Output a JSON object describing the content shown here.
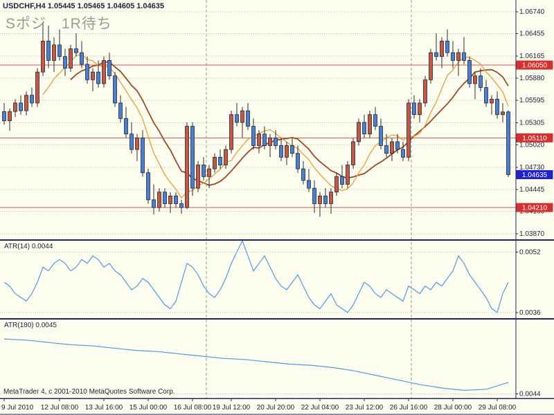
{
  "window": {
    "title_line": "USDCHF,H4 1.05445 1.05465 1.04605 1.04635",
    "symbol": "USDCHF",
    "timeframe": "H4",
    "ohlc_display": {
      "open": "1.05445",
      "high": "1.05465",
      "low": "1.04605",
      "close": "1.04635"
    },
    "overlay_note": "Sポジ　1R待ち",
    "copyright": "MetaTrader 4, c 2001-2010 MetaQuotes Software Corp."
  },
  "colors": {
    "background": "#FCFCEF",
    "grid": "#BDBDB2",
    "axis_text": "#23233F",
    "panel_border": "#23235F",
    "bull": "#C0584C",
    "bear": "#4C7FCC",
    "wick": "#2A2A35",
    "body_outline": "#1C1C28",
    "ma_fast": "#E2A13C",
    "ma_slow": "#9A4A28",
    "level_line": "#E05555",
    "level_badge": "#D43030",
    "current_badge": "#2222CC",
    "badge_text": "#FFFFFF",
    "atr_line": "#5599DD",
    "separator_dash": "#9A9A90"
  },
  "chart_data": [
    {
      "type": "candlestick",
      "title": "USDCHF H4",
      "ylim": [
        1.038,
        1.0689
      ],
      "y_ticks": [
        "1.06740",
        "1.06455",
        "1.06165",
        "1.05880",
        "1.05595",
        "1.05305",
        "1.05020",
        "1.04730",
        "1.04445",
        "1.04160",
        "1.03870"
      ],
      "open": [
        1.0545,
        1.0533,
        1.0545,
        1.0556,
        1.0546,
        1.0566,
        1.0556,
        1.0596,
        1.0636,
        1.0611,
        1.0631,
        1.0616,
        1.0601,
        1.0626,
        1.0621,
        1.0606,
        1.0586,
        1.0596,
        1.0581,
        1.0611,
        1.0591,
        1.0556,
        1.0536,
        1.0516,
        1.0496,
        1.0511,
        1.0466,
        1.0431,
        1.0421,
        1.0441,
        1.0426,
        1.0436,
        1.0426,
        1.0421,
        1.0526,
        1.0446,
        1.0476,
        1.0461,
        1.0471,
        1.0486,
        1.0476,
        1.0496,
        1.0541,
        1.0531,
        1.0546,
        1.0526,
        1.0501,
        1.0516,
        1.0501,
        1.0511,
        1.0501,
        1.0486,
        1.0501,
        1.0491,
        1.0471,
        1.0456,
        1.0446,
        1.0426,
        1.0436,
        1.0426,
        1.0441,
        1.0461,
        1.0451,
        1.0476,
        1.0506,
        1.0531,
        1.0516,
        1.0541,
        1.0526,
        1.0501,
        1.0491,
        1.0506,
        1.0496,
        1.0486,
        1.0556,
        1.0541,
        1.0556,
        1.0586,
        1.0621,
        1.0616,
        1.0636,
        1.0621,
        1.0611,
        1.0621,
        1.0611,
        1.0581,
        1.0591,
        1.0576,
        1.0556,
        1.0561,
        1.0541,
        1.05445
      ],
      "high": [
        1.0556,
        1.0549,
        1.0561,
        1.0566,
        1.0571,
        1.0576,
        1.0601,
        1.0661,
        1.0656,
        1.0641,
        1.0651,
        1.0626,
        1.0631,
        1.0646,
        1.0636,
        1.0616,
        1.0601,
        1.0611,
        1.0616,
        1.0621,
        1.0596,
        1.0566,
        1.0551,
        1.0531,
        1.0516,
        1.0521,
        1.0471,
        1.0451,
        1.0446,
        1.0446,
        1.0441,
        1.0441,
        1.0431,
        1.0531,
        1.0531,
        1.0481,
        1.0486,
        1.0476,
        1.0491,
        1.0496,
        1.0501,
        1.0546,
        1.0556,
        1.0551,
        1.0556,
        1.0536,
        1.0521,
        1.0526,
        1.0516,
        1.0521,
        1.0511,
        1.0506,
        1.0511,
        1.0501,
        1.0481,
        1.0471,
        1.0456,
        1.0441,
        1.0446,
        1.0446,
        1.0466,
        1.0476,
        1.0481,
        1.0511,
        1.0536,
        1.0541,
        1.0546,
        1.0551,
        1.0536,
        1.0516,
        1.0511,
        1.0516,
        1.0506,
        1.0561,
        1.0566,
        1.0561,
        1.0591,
        1.0626,
        1.0646,
        1.0641,
        1.0651,
        1.0636,
        1.0626,
        1.0641,
        1.0616,
        1.0596,
        1.0601,
        1.0586,
        1.0566,
        1.0571,
        1.0556,
        1.05465
      ],
      "low": [
        1.0528,
        1.052,
        1.0538,
        1.0541,
        1.054,
        1.0551,
        1.0551,
        1.0591,
        1.0601,
        1.0596,
        1.0611,
        1.0591,
        1.0596,
        1.0616,
        1.0601,
        1.0581,
        1.0571,
        1.0576,
        1.0576,
        1.0586,
        1.0551,
        1.0531,
        1.0511,
        1.0491,
        1.0481,
        1.0461,
        1.0426,
        1.0412,
        1.0416,
        1.0421,
        1.0414,
        1.0421,
        1.0413,
        1.0419,
        1.0436,
        1.0441,
        1.0456,
        1.0446,
        1.0466,
        1.0471,
        1.0471,
        1.0491,
        1.0526,
        1.0511,
        1.0521,
        1.0496,
        1.0491,
        1.0496,
        1.0486,
        1.0496,
        1.0481,
        1.0476,
        1.0486,
        1.0466,
        1.0451,
        1.0441,
        1.0414,
        1.0409,
        1.0421,
        1.0413,
        1.0436,
        1.0446,
        1.0446,
        1.0471,
        1.0501,
        1.0511,
        1.0511,
        1.0521,
        1.0496,
        1.0486,
        1.0481,
        1.0491,
        1.0481,
        1.0481,
        1.0536,
        1.0531,
        1.0551,
        1.0581,
        1.0611,
        1.0601,
        1.0616,
        1.0601,
        1.0591,
        1.0606,
        1.0576,
        1.0561,
        1.0571,
        1.0551,
        1.0541,
        1.0536,
        1.0531,
        1.04605
      ],
      "close": [
        1.0533,
        1.0545,
        1.0556,
        1.0546,
        1.0566,
        1.0556,
        1.0596,
        1.0636,
        1.0611,
        1.0631,
        1.0616,
        1.0601,
        1.0626,
        1.0621,
        1.0606,
        1.0586,
        1.0596,
        1.0581,
        1.0611,
        1.0591,
        1.0556,
        1.0536,
        1.0516,
        1.0496,
        1.0511,
        1.0466,
        1.0431,
        1.0421,
        1.0441,
        1.0426,
        1.0436,
        1.0426,
        1.0421,
        1.0526,
        1.0446,
        1.0476,
        1.0461,
        1.0471,
        1.0486,
        1.0476,
        1.0496,
        1.0541,
        1.0531,
        1.0546,
        1.0526,
        1.0501,
        1.0516,
        1.0501,
        1.0511,
        1.0501,
        1.0486,
        1.0501,
        1.0491,
        1.0471,
        1.0456,
        1.0446,
        1.0426,
        1.0436,
        1.0426,
        1.0441,
        1.0461,
        1.0451,
        1.0476,
        1.0506,
        1.0531,
        1.0516,
        1.0541,
        1.0526,
        1.0501,
        1.0491,
        1.0506,
        1.0496,
        1.0486,
        1.0556,
        1.0541,
        1.0556,
        1.0586,
        1.0621,
        1.0616,
        1.0636,
        1.0621,
        1.0611,
        1.0621,
        1.0611,
        1.0581,
        1.0591,
        1.0576,
        1.0556,
        1.0561,
        1.0541,
        1.05445,
        1.04635
      ],
      "levels": [
        {
          "price": 1.0605,
          "label": "1.06050"
        },
        {
          "price": 1.0511,
          "label": "1.05110"
        },
        {
          "price": 1.0421,
          "label": "1.04210"
        }
      ],
      "current_price": {
        "value": 1.04635,
        "label": "1.04635"
      },
      "ma_periods": [
        8,
        13
      ],
      "x_labels": [
        {
          "text": "9 Jul 2010",
          "index": 0
        },
        {
          "text": "12 Jul 08:00",
          "index": 10
        },
        {
          "text": "13 Jul 16:00",
          "index": 18
        },
        {
          "text": "15 Jul 00:00",
          "index": 26
        },
        {
          "text": "16 Jul 08:00",
          "index": 34
        },
        {
          "text": "19 Jul 12:00",
          "index": 41
        },
        {
          "text": "20 Jul 20:00",
          "index": 49
        },
        {
          "text": "22 Jul 04:00",
          "index": 57
        },
        {
          "text": "23 Jul 12:00",
          "index": 65
        },
        {
          "text": "26 Jul 16:00",
          "index": 73
        },
        {
          "text": "28 Jul 00:00",
          "index": 81
        },
        {
          "text": "29 Jul 08:00",
          "index": 89
        }
      ],
      "week_separators_index": [
        36.5,
        73.5
      ],
      "grid": "dotted",
      "legend_position": "none"
    },
    {
      "type": "line",
      "name": "ATR(14)",
      "label": "ATR(14) 0.0044",
      "current": "0.0044",
      "ylim": [
        0.00345,
        0.0055
      ],
      "y_ticks": [
        "0.0052",
        "0.0036"
      ],
      "values": [
        0.0044,
        0.0043,
        0.0041,
        0.004,
        0.0039,
        0.0041,
        0.0044,
        0.0048,
        0.0047,
        0.0049,
        0.005,
        0.0049,
        0.0047,
        0.0048,
        0.005,
        0.0049,
        0.0051,
        0.005,
        0.0048,
        0.0049,
        0.0047,
        0.0046,
        0.0044,
        0.0042,
        0.0043,
        0.0045,
        0.0044,
        0.0042,
        0.004,
        0.0038,
        0.0037,
        0.0039,
        0.0044,
        0.0049,
        0.0048,
        0.0046,
        0.0043,
        0.0041,
        0.004,
        0.0042,
        0.0045,
        0.0049,
        0.0052,
        0.0055,
        0.0051,
        0.0047,
        0.0049,
        0.0051,
        0.0048,
        0.0045,
        0.0043,
        0.0042,
        0.0044,
        0.0046,
        0.0043,
        0.004,
        0.0038,
        0.0037,
        0.0039,
        0.0041,
        0.0038,
        0.0037,
        0.0036,
        0.0038,
        0.0041,
        0.0044,
        0.0043,
        0.0041,
        0.004,
        0.0042,
        0.0041,
        0.004,
        0.0039,
        0.0043,
        0.0042,
        0.0041,
        0.0043,
        0.0042,
        0.0044,
        0.0043,
        0.0045,
        0.0047,
        0.0051,
        0.0049,
        0.0046,
        0.0044,
        0.0042,
        0.004,
        0.0037,
        0.0036,
        0.0041,
        0.0044
      ]
    },
    {
      "type": "line",
      "name": "ATR(180)",
      "label": "ATR(180) 0.0045",
      "current": "0.0045",
      "ylim": [
        0.00436,
        0.00505
      ],
      "y_ticks": [
        "0.0044"
      ],
      "values": [
        0.00488,
        0.00487,
        0.00485,
        0.00483,
        0.00482,
        0.0048,
        0.00478,
        0.00477,
        0.00475,
        0.00473,
        0.00471,
        0.0047,
        0.00468,
        0.00466,
        0.00465,
        0.00463,
        0.0046,
        0.00456,
        0.00452,
        0.00448,
        0.00445,
        0.00443,
        0.00444,
        0.0045
      ]
    }
  ]
}
